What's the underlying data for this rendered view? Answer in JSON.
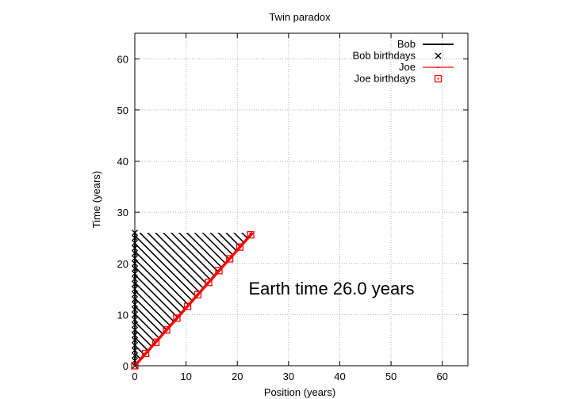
{
  "chart_data": {
    "type": "line",
    "title": "Twin paradox",
    "xlabel": "Position (years)",
    "ylabel": "Time (years)",
    "xlim": [
      0,
      65
    ],
    "ylim": [
      0,
      65
    ],
    "x_ticks": [
      0,
      10,
      20,
      30,
      40,
      50,
      60
    ],
    "y_ticks": [
      0,
      10,
      20,
      30,
      40,
      50,
      60
    ],
    "grid": true,
    "legend_position": "top-right",
    "annotation": "Earth time 26.0 years",
    "colors": {
      "bob": "#000000",
      "joe": "#ff0000",
      "grid": "#b0b0b0"
    },
    "series": [
      {
        "name": "Bob",
        "type": "line",
        "x": [
          0,
          0
        ],
        "y": [
          0,
          26.0
        ]
      },
      {
        "name": "Bob birthdays",
        "type": "scatter",
        "marker": "x",
        "x": [
          0,
          0,
          0,
          0,
          0,
          0,
          0,
          0,
          0,
          0,
          0,
          0,
          0,
          0,
          0,
          0,
          0,
          0,
          0,
          0,
          0,
          0,
          0,
          0,
          0,
          0,
          0
        ],
        "y": [
          0,
          1,
          2,
          3,
          4,
          5,
          6,
          7,
          8,
          9,
          10,
          11,
          12,
          13,
          14,
          15,
          16,
          17,
          18,
          19,
          20,
          21,
          22,
          23,
          24,
          25,
          26
        ]
      },
      {
        "name": "Joe",
        "type": "line",
        "x": [
          0,
          23.0
        ],
        "y": [
          0,
          26.0
        ]
      },
      {
        "name": "Joe birthdays",
        "type": "scatter",
        "marker": "square",
        "x": [
          0,
          2.1,
          4.1,
          6.2,
          8.2,
          10.3,
          12.3,
          14.4,
          16.4,
          18.5,
          20.5,
          22.6
        ],
        "y": [
          0,
          2.4,
          4.6,
          7.0,
          9.3,
          11.6,
          13.9,
          16.3,
          18.6,
          20.9,
          23.2,
          25.6
        ]
      }
    ]
  }
}
